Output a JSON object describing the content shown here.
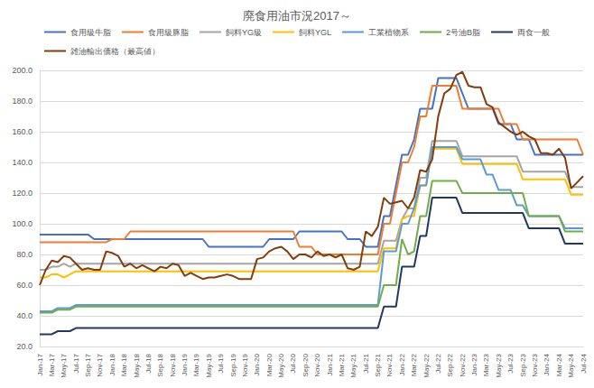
{
  "chart_data": {
    "type": "line",
    "title": "廃食用油市況2017～",
    "categories": [
      "Jan-17",
      null,
      "Mar-17",
      null,
      "May-17",
      null,
      "Jul-17",
      null,
      "Sep-17",
      null,
      "Nov-17",
      null,
      "Jan-18",
      null,
      "Mar-18",
      null,
      "May-18",
      null,
      "Jul-18",
      null,
      "Sep-18",
      null,
      "Nov-18",
      null,
      "Jan-19",
      null,
      "Mar-19",
      null,
      "May-19",
      null,
      "Jul-19",
      null,
      "Sep-19",
      null,
      "Nov-19",
      null,
      "Jan-20",
      null,
      "Mar-20",
      null,
      "May-20",
      null,
      "Jul-20",
      null,
      "Sep-20",
      null,
      "Nov-20",
      null,
      "Jan-21",
      null,
      "Mar-21",
      null,
      "May-21",
      null,
      "Jul-21",
      null,
      "Sep-21",
      null,
      "Nov-21",
      null,
      "Jan-22",
      null,
      "Mar-22",
      null,
      "May-22",
      null,
      "Jul-22",
      null,
      "Sep-22",
      null,
      "Nov-22",
      null,
      "Jan-23",
      null,
      "Mar-23",
      null,
      "May-23",
      null,
      "Jul-23",
      null,
      "Sep-23",
      null,
      "Nov-23",
      null,
      "Jan-24",
      null,
      "Mar-24",
      null,
      "May-24",
      null,
      "Jul-24"
    ],
    "series": [
      {
        "name": "食用級牛脂",
        "color": "#4472c4",
        "values": [
          93,
          93,
          93,
          93,
          93,
          93,
          93,
          93,
          93,
          90,
          90,
          90,
          90,
          90,
          90,
          90,
          90,
          90,
          90,
          90,
          90,
          90,
          90,
          90,
          90,
          90,
          90,
          90,
          85,
          85,
          85,
          85,
          85,
          85,
          85,
          85,
          85,
          85,
          90,
          90,
          90,
          90,
          90,
          95,
          95,
          95,
          95,
          95,
          95,
          95,
          95,
          90,
          90,
          90,
          85,
          85,
          85,
          105,
          105,
          125,
          145,
          145,
          155,
          175,
          175,
          175,
          195,
          195,
          195,
          195,
          185,
          175,
          175,
          175,
          175,
          175,
          165,
          165,
          165,
          155,
          155,
          155,
          145,
          145,
          145,
          145,
          145,
          145,
          145,
          145,
          145
        ]
      },
      {
        "name": "食用級豚脂",
        "color": "#ed7d31",
        "values": [
          88,
          88,
          88,
          88,
          88,
          88,
          88,
          88,
          88,
          88,
          88,
          88,
          90,
          90,
          90,
          95,
          95,
          95,
          95,
          95,
          95,
          95,
          95,
          95,
          95,
          95,
          95,
          95,
          95,
          95,
          95,
          95,
          95,
          95,
          95,
          95,
          95,
          95,
          95,
          95,
          95,
          95,
          95,
          85,
          85,
          85,
          80,
          80,
          80,
          80,
          80,
          80,
          80,
          80,
          80,
          80,
          80,
          100,
          100,
          120,
          140,
          140,
          150,
          170,
          170,
          190,
          190,
          190,
          190,
          190,
          175,
          175,
          175,
          175,
          175,
          175,
          175,
          165,
          165,
          165,
          155,
          155,
          155,
          155,
          155,
          155,
          155,
          155,
          155,
          155,
          145
        ]
      },
      {
        "name": "飼料YG級",
        "color": "#a5a5a5",
        "values": [
          70,
          70,
          72,
          72,
          74,
          72,
          74,
          74,
          74,
          74,
          74,
          74,
          74,
          74,
          74,
          74,
          74,
          74,
          74,
          74,
          74,
          74,
          74,
          74,
          74,
          74,
          74,
          74,
          74,
          74,
          74,
          74,
          74,
          74,
          74,
          74,
          74,
          74,
          74,
          74,
          74,
          74,
          74,
          74,
          74,
          74,
          74,
          74,
          74,
          74,
          74,
          74,
          74,
          74,
          74,
          74,
          74,
          89,
          89,
          89,
          103,
          110,
          110,
          130,
          130,
          154,
          154,
          154,
          154,
          154,
          144,
          144,
          144,
          144,
          144,
          144,
          144,
          144,
          144,
          144,
          134,
          134,
          134,
          134,
          134,
          134,
          134,
          134,
          124,
          124,
          124
        ]
      },
      {
        "name": "飼料YGL",
        "color": "#ffc000",
        "values": [
          65,
          65,
          67,
          67,
          65,
          67,
          69,
          69,
          69,
          69,
          69,
          69,
          69,
          69,
          69,
          69,
          69,
          69,
          69,
          69,
          69,
          69,
          69,
          69,
          69,
          69,
          69,
          69,
          69,
          69,
          69,
          69,
          69,
          69,
          69,
          69,
          69,
          69,
          69,
          69,
          69,
          69,
          69,
          69,
          69,
          69,
          69,
          69,
          69,
          69,
          69,
          69,
          69,
          69,
          69,
          69,
          69,
          84,
          84,
          84,
          103,
          105,
          105,
          125,
          125,
          149,
          149,
          149,
          149,
          149,
          139,
          139,
          139,
          139,
          139,
          139,
          139,
          139,
          139,
          139,
          129,
          129,
          129,
          129,
          129,
          129,
          129,
          129,
          119,
          119,
          119
        ]
      },
      {
        "name": "工業植物系",
        "color": "#5b9bd5",
        "values": [
          43,
          43,
          43,
          45,
          45,
          45,
          47,
          47,
          47,
          47,
          47,
          47,
          47,
          47,
          47,
          47,
          47,
          47,
          47,
          47,
          47,
          47,
          47,
          47,
          47,
          47,
          47,
          47,
          47,
          47,
          47,
          47,
          47,
          47,
          47,
          47,
          47,
          47,
          47,
          47,
          47,
          47,
          47,
          47,
          47,
          47,
          47,
          47,
          47,
          47,
          47,
          47,
          47,
          47,
          47,
          47,
          47,
          82,
          82,
          82,
          100,
          100,
          110,
          125,
          125,
          150,
          150,
          150,
          150,
          150,
          142,
          142,
          142,
          142,
          132,
          132,
          122,
          122,
          122,
          112,
          112,
          105,
          105,
          105,
          105,
          105,
          105,
          97,
          97,
          97,
          97
        ]
      },
      {
        "name": "2号油B脂",
        "color": "#70ad47",
        "values": [
          42,
          42,
          42,
          44,
          44,
          44,
          46,
          46,
          46,
          46,
          46,
          46,
          46,
          46,
          46,
          46,
          46,
          46,
          46,
          46,
          46,
          46,
          46,
          46,
          46,
          46,
          46,
          46,
          46,
          46,
          46,
          46,
          46,
          46,
          46,
          46,
          46,
          46,
          46,
          46,
          46,
          46,
          46,
          46,
          46,
          46,
          46,
          46,
          46,
          46,
          46,
          46,
          46,
          46,
          46,
          46,
          46,
          60,
          60,
          60,
          90,
          80,
          82,
          105,
          105,
          128,
          128,
          128,
          128,
          128,
          120,
          120,
          120,
          120,
          120,
          120,
          120,
          120,
          120,
          120,
          120,
          105,
          105,
          105,
          105,
          105,
          105,
          95,
          95,
          95,
          95
        ]
      },
      {
        "name": "両食一般",
        "color": "#1f3864",
        "values": [
          28,
          28,
          28,
          30,
          30,
          30,
          32,
          32,
          32,
          32,
          32,
          32,
          32,
          32,
          32,
          32,
          32,
          32,
          32,
          32,
          32,
          32,
          32,
          32,
          32,
          32,
          32,
          32,
          32,
          32,
          32,
          32,
          32,
          32,
          32,
          32,
          32,
          32,
          32,
          32,
          32,
          32,
          32,
          32,
          32,
          32,
          32,
          32,
          32,
          32,
          32,
          32,
          32,
          32,
          32,
          32,
          32,
          46,
          46,
          46,
          72,
          72,
          72,
          92,
          92,
          117,
          117,
          117,
          117,
          117,
          107,
          107,
          107,
          107,
          107,
          107,
          107,
          107,
          107,
          107,
          107,
          97,
          97,
          97,
          97,
          97,
          97,
          87,
          87,
          87,
          87
        ]
      },
      {
        "name": "雑油輸出価格（最高値）",
        "color": "#843c0c",
        "values": [
          60,
          70,
          76,
          75,
          79,
          78,
          74,
          70,
          71,
          70,
          70,
          82,
          81,
          79,
          72,
          74,
          71,
          73,
          71,
          69,
          72,
          71,
          74,
          73,
          66,
          68,
          66,
          64,
          65,
          65,
          66,
          67,
          66,
          64,
          64,
          64,
          77,
          78,
          82,
          84,
          85,
          82,
          77,
          80,
          80,
          78,
          82,
          79,
          80,
          78,
          80,
          71,
          70,
          72,
          95,
          92,
          98,
          117,
          113,
          114,
          115,
          110,
          117,
          135,
          134,
          142,
          170,
          185,
          188,
          197,
          199,
          190,
          189,
          189,
          178,
          176,
          166,
          163,
          160,
          158,
          160,
          157,
          155,
          146,
          146,
          145,
          149,
          143,
          123,
          127,
          131
        ]
      }
    ],
    "ylim": [
      20,
      200
    ],
    "yticks": [
      {
        "value": 20,
        "label": "20.0"
      },
      {
        "value": 40,
        "label": "40.0"
      },
      {
        "value": 60,
        "label": "60.0"
      },
      {
        "value": 80,
        "label": "80.0"
      },
      {
        "value": 100,
        "label": "100.0"
      },
      {
        "value": 120,
        "label": "120.0"
      },
      {
        "value": 140,
        "label": "140.0"
      },
      {
        "value": 160,
        "label": "160.0"
      },
      {
        "value": 180,
        "label": "180.0"
      },
      {
        "value": 200,
        "label": "200.0"
      }
    ],
    "grid": true,
    "legend": "top"
  }
}
